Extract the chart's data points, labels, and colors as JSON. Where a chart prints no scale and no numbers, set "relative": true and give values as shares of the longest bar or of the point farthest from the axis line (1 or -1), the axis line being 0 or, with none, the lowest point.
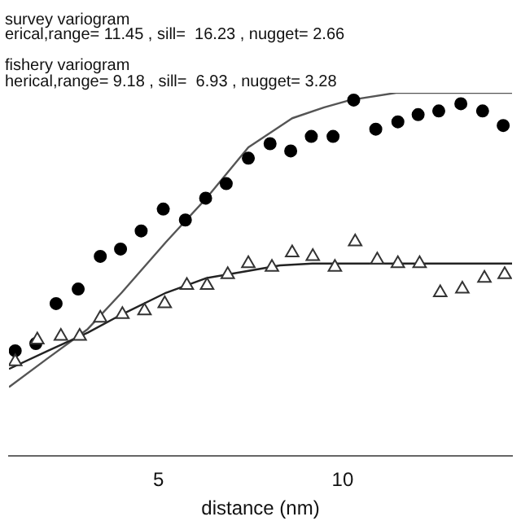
{
  "chart_data": {
    "type": "scatter",
    "relative": true,
    "xlabel": "distance (nm)",
    "xlim": [
      0.94,
      14.6
    ],
    "xticks": [
      5,
      10
    ],
    "grid": false,
    "legend": false,
    "annotations": [
      "survey variogram",
      "erical,range= 11.45 , sill=  16.23 , nugget= 2.66",
      "fishery variogram",
      "herical,range= 9.18 , sill=  6.93 , nugget= 3.28"
    ],
    "series": [
      {
        "marker": "circle",
        "color": "#000000",
        "x": [
          1.11,
          1.67,
          2.22,
          2.82,
          3.42,
          3.97,
          4.53,
          5.13,
          5.73,
          6.28,
          6.84,
          7.44,
          8.03,
          8.59,
          9.15,
          9.74,
          10.3,
          10.9,
          11.5,
          12.05,
          12.61,
          13.21,
          13.8,
          14.36
        ],
        "values": [
          0.29,
          0.31,
          0.42,
          0.46,
          0.55,
          0.57,
          0.62,
          0.68,
          0.65,
          0.71,
          0.75,
          0.82,
          0.86,
          0.84,
          0.88,
          0.88,
          0.98,
          0.9,
          0.92,
          0.94,
          0.95,
          0.97,
          0.95,
          0.91
        ]
      },
      {
        "marker": "triangle",
        "color": "#333333",
        "x": [
          1.11,
          1.71,
          2.35,
          2.86,
          3.42,
          4.02,
          4.62,
          5.17,
          5.77,
          6.32,
          6.88,
          7.44,
          8.08,
          8.63,
          9.19,
          9.79,
          10.34,
          10.94,
          11.5,
          12.09,
          12.65,
          13.25,
          13.85,
          14.4
        ],
        "values": [
          0.26,
          0.32,
          0.33,
          0.33,
          0.38,
          0.39,
          0.4,
          0.42,
          0.47,
          0.47,
          0.5,
          0.53,
          0.52,
          0.56,
          0.55,
          0.52,
          0.59,
          0.54,
          0.53,
          0.53,
          0.45,
          0.46,
          0.49,
          0.5
        ]
      },
      {
        "type": "line",
        "marker": "none",
        "color": "#555555",
        "x": [
          0.94,
          2,
          3.08,
          4,
          5.21,
          6.3,
          7.44,
          8.63,
          9.5,
          10.21,
          11.45,
          14.6
        ],
        "values": [
          0.19,
          0.27,
          0.35,
          0.45,
          0.59,
          0.71,
          0.85,
          0.93,
          0.96,
          0.98,
          1,
          1
        ]
      },
      {
        "type": "line",
        "marker": "none",
        "color": "#222222",
        "x": [
          0.94,
          2,
          3.08,
          4,
          5.21,
          6.3,
          7.44,
          8.3,
          9.18,
          14.6
        ],
        "values": [
          0.24,
          0.29,
          0.34,
          0.39,
          0.45,
          0.49,
          0.51,
          0.525,
          0.53,
          0.53
        ]
      }
    ]
  }
}
